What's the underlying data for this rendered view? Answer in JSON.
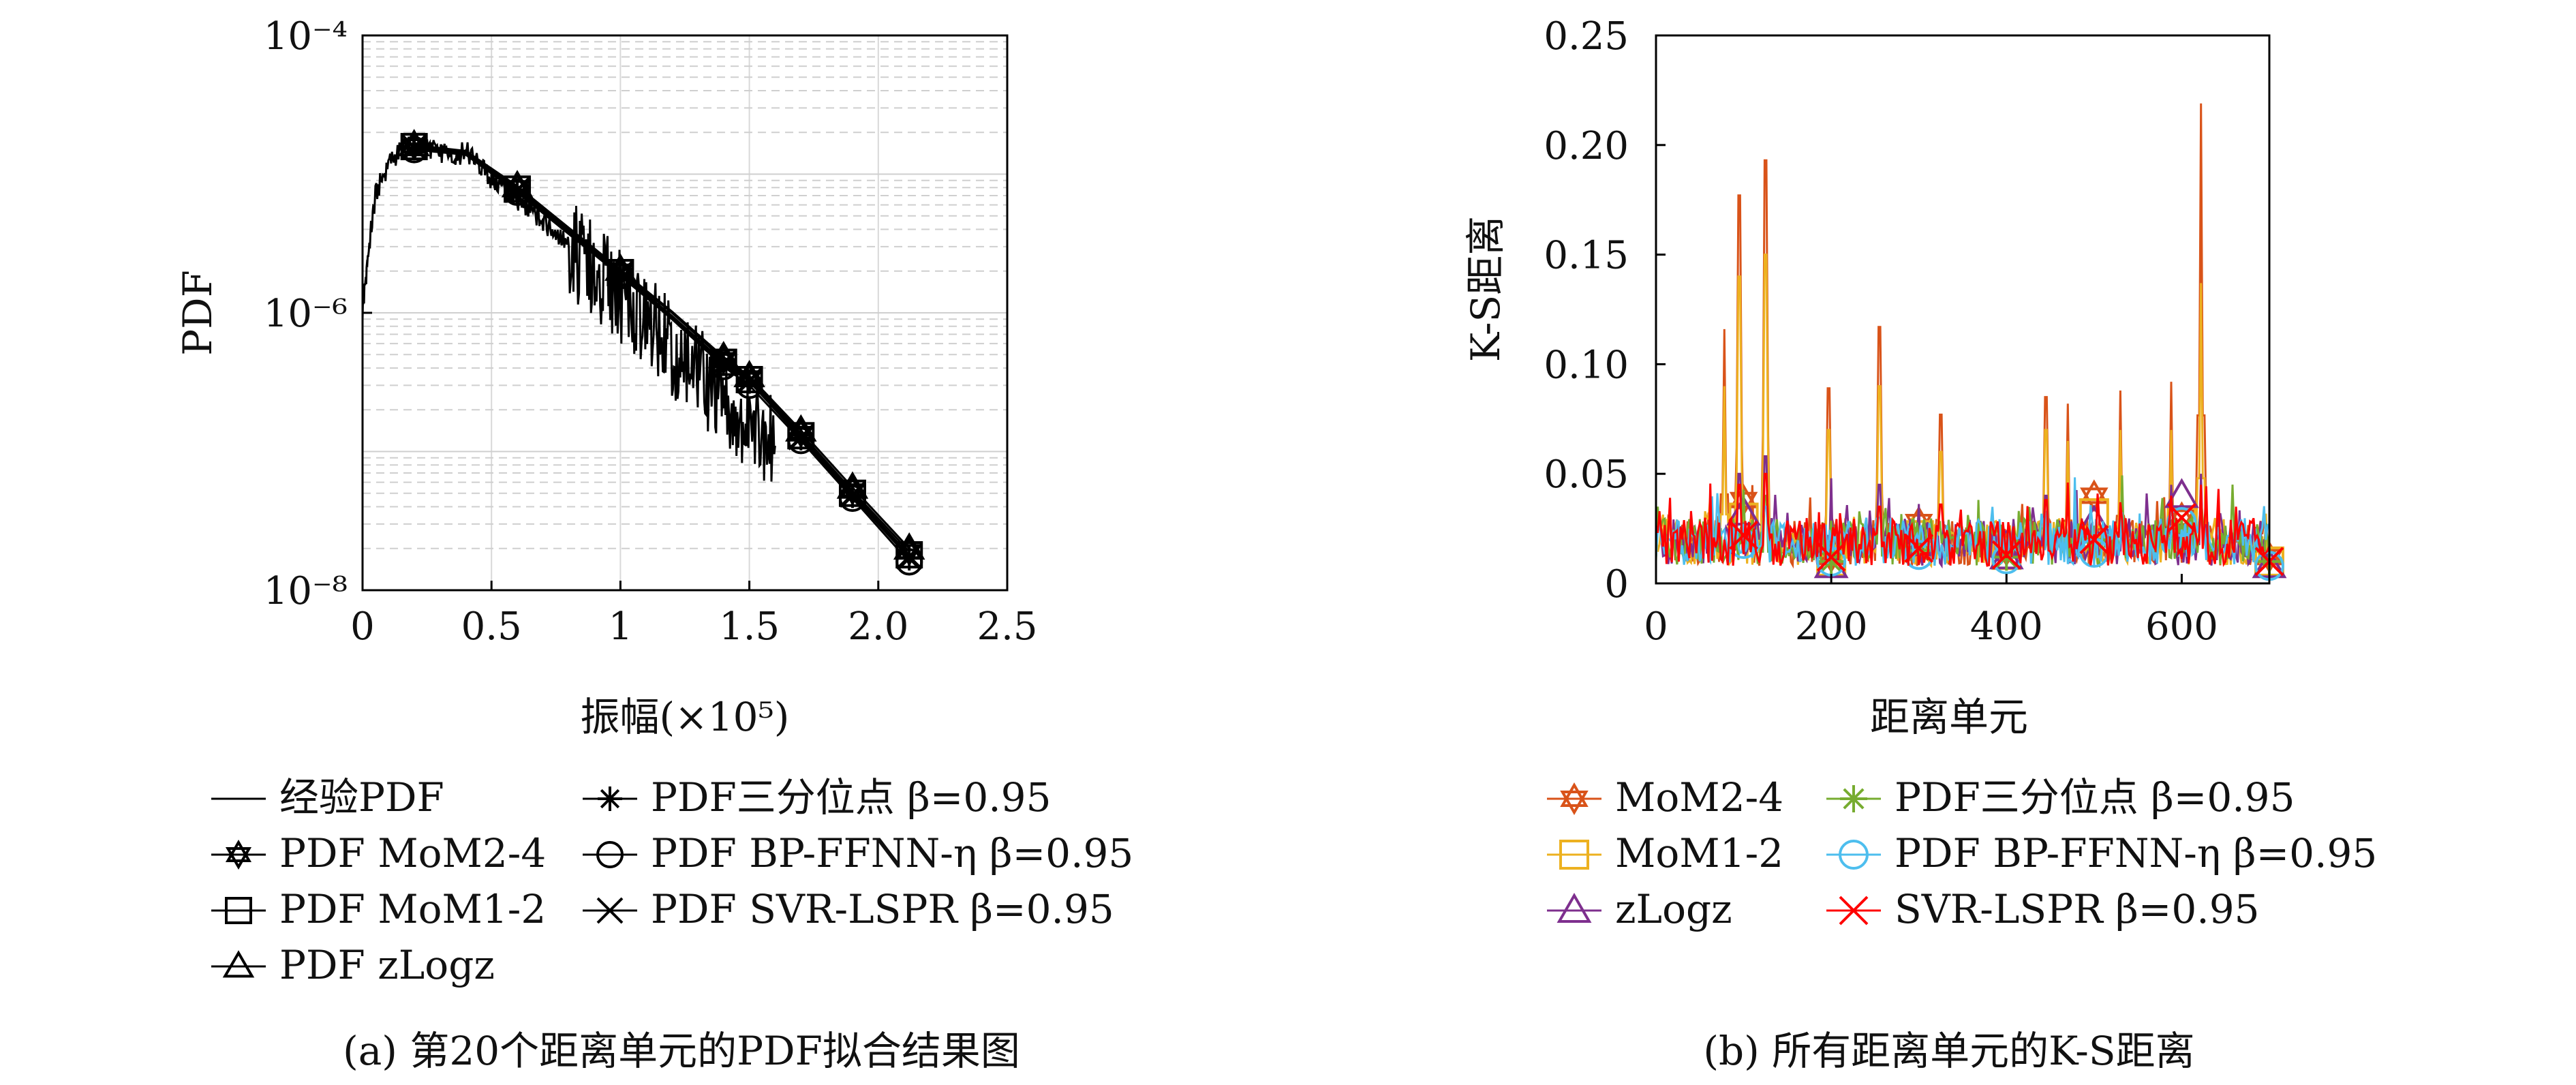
{
  "chart_data": [
    {
      "type": "line",
      "caption": "(a) 第20个距离单元的PDF拟合结果图",
      "xlabel": "振幅(×10⁵)",
      "ylabel": "PDF",
      "x_scale": "linear",
      "y_scale": "log",
      "xlim": [
        0,
        2.5
      ],
      "ylim": [
        1e-08,
        0.0001
      ],
      "xticks": [
        0,
        0.5,
        1,
        1.5,
        2,
        2.5
      ],
      "xtick_labels": [
        "0",
        "0.5",
        "1",
        "1.5",
        "2.0",
        "2.5"
      ],
      "yticks": [
        1e-08,
        1e-06,
        0.0001
      ],
      "ytick_labels": [
        "10⁻⁸",
        "10⁻⁶",
        "10⁻⁴"
      ],
      "grid": true,
      "legend_placement": "below",
      "series": [
        {
          "name": "经验PDF",
          "marker": "none",
          "x": [
            0,
            0.02,
            0.05,
            0.1,
            0.15,
            0.2,
            0.25,
            0.3,
            0.35,
            0.4,
            0.45,
            0.5,
            0.55,
            0.6,
            0.65,
            0.7,
            0.75,
            0.8,
            0.85,
            0.9,
            0.95,
            1.0,
            1.05,
            1.1,
            1.15,
            1.2,
            1.25,
            1.3,
            1.35,
            1.4,
            1.45,
            1.5,
            1.55,
            1.6
          ],
          "y": [
            1e-06,
            2.5e-06,
            7e-06,
            1.2e-05,
            1.5e-05,
            1.7e-05,
            1.6e-05,
            1.4e-05,
            1.35e-05,
            1.45e-05,
            1.2e-05,
            9e-06,
            8e-06,
            6.5e-06,
            5.5e-06,
            4.5e-06,
            3.8e-06,
            3e-06,
            2.4e-06,
            2e-06,
            1.6e-06,
            1.3e-06,
            1.1e-06,
            8.5e-07,
            7e-07,
            5.5e-07,
            4.5e-07,
            3.6e-07,
            3e-07,
            2.4e-07,
            2e-07,
            1.6e-07,
            1.3e-07,
            1.1e-07
          ]
        },
        {
          "name": "PDF MoM2-4",
          "marker": "hexagram",
          "x": [
            0.2,
            0.4,
            0.6,
            0.8,
            1.0,
            1.2,
            1.4,
            1.5,
            1.7,
            1.9,
            2.12
          ],
          "y": [
            1.6e-05,
            1.45e-05,
            8e-06,
            4e-06,
            2e-06,
            1e-06,
            4.6e-07,
            3.4e-07,
            1.35e-07,
            5.2e-08,
            1.9e-08
          ]
        },
        {
          "name": "PDF MoM1-2",
          "marker": "square",
          "x": [
            0.2,
            0.4,
            0.6,
            0.8,
            1.0,
            1.2,
            1.4,
            1.5,
            1.7,
            1.9,
            2.12
          ],
          "y": [
            1.58e-05,
            1.43e-05,
            7.8e-06,
            3.9e-06,
            1.95e-06,
            9.5e-07,
            4.4e-07,
            3.3e-07,
            1.3e-07,
            5e-08,
            1.8e-08
          ]
        },
        {
          "name": "PDF zLogz",
          "marker": "triangle",
          "x": [
            0.2,
            0.4,
            0.6,
            0.8,
            1.0,
            1.2,
            1.4,
            1.5,
            1.7,
            1.9,
            2.12
          ],
          "y": [
            1.62e-05,
            1.47e-05,
            8.2e-06,
            4.1e-06,
            2.05e-06,
            1.02e-06,
            4.8e-07,
            3.5e-07,
            1.42e-07,
            5.5e-08,
            2e-08
          ]
        },
        {
          "name": "PDF三分位点 β=0.95",
          "marker": "asterisk",
          "x": [
            0.2,
            0.4,
            0.6,
            0.8,
            1.0,
            1.2,
            1.4,
            1.5,
            1.7,
            1.9,
            2.12
          ],
          "y": [
            1.55e-05,
            1.4e-05,
            7.6e-06,
            3.8e-06,
            1.9e-06,
            9.2e-07,
            4.3e-07,
            3.2e-07,
            1.25e-07,
            4.8e-08,
            1.7e-08
          ]
        },
        {
          "name": "PDF BP-FFNN-η β=0.95",
          "marker": "circle",
          "x": [
            0.2,
            0.4,
            0.6,
            0.8,
            1.0,
            1.2,
            1.4,
            1.5,
            1.7,
            1.9,
            2.12
          ],
          "y": [
            1.5e-05,
            1.38e-05,
            7.4e-06,
            3.7e-06,
            1.85e-06,
            9e-07,
            4.1e-07,
            3e-07,
            1.2e-07,
            4.6e-08,
            1.6e-08
          ]
        },
        {
          "name": "PDF SVR-LSPR β=0.95",
          "marker": "x",
          "x": [
            0.2,
            0.4,
            0.6,
            0.8,
            1.0,
            1.2,
            1.4,
            1.5,
            1.7,
            1.9,
            2.12
          ],
          "y": [
            1.57e-05,
            1.42e-05,
            7.7e-06,
            3.85e-06,
            1.92e-06,
            9.3e-07,
            4.35e-07,
            3.25e-07,
            1.27e-07,
            4.9e-08,
            1.75e-08
          ]
        }
      ]
    },
    {
      "type": "line",
      "caption": "(b) 所有距离单元的K-S距离",
      "xlabel": "距离单元",
      "ylabel": "K-S距离",
      "xlim": [
        0,
        700
      ],
      "ylim": [
        0,
        0.25
      ],
      "xticks": [
        0,
        200,
        400,
        600
      ],
      "xtick_labels": [
        "0",
        "200",
        "400",
        "600"
      ],
      "yticks": [
        0,
        0.05,
        0.1,
        0.15,
        0.2,
        0.25
      ],
      "ytick_labels": [
        "0",
        "0.05",
        "0.10",
        "0.15",
        "0.20",
        "0.25"
      ],
      "grid": false,
      "legend_placement": "below",
      "series": [
        {
          "name": "MoM2-4",
          "color": "#d95319",
          "marker": "hexagram",
          "peaks": [
            [
              78,
              0.116
            ],
            [
              95,
              0.177
            ],
            [
              125,
              0.193
            ],
            [
              197,
              0.089
            ],
            [
              255,
              0.117
            ],
            [
              325,
              0.077
            ],
            [
              445,
              0.085
            ],
            [
              470,
              0.082
            ],
            [
              530,
              0.088
            ],
            [
              588,
              0.092
            ],
            [
              622,
              0.219
            ]
          ],
          "marker_x": [
            100,
            200,
            300,
            400,
            500,
            600,
            700
          ],
          "marker_y": [
            0.038,
            0.012,
            0.028,
            0.015,
            0.04,
            0.03,
            0.012
          ]
        },
        {
          "name": "MoM1-2",
          "color": "#edb120",
          "marker": "square",
          "peaks": [
            [
              78,
              0.09
            ],
            [
              95,
              0.14
            ],
            [
              125,
              0.15
            ],
            [
              197,
              0.07
            ],
            [
              255,
              0.09
            ],
            [
              325,
              0.06
            ],
            [
              445,
              0.07
            ],
            [
              470,
              0.065
            ],
            [
              530,
              0.07
            ],
            [
              588,
              0.07
            ],
            [
              622,
              0.137
            ]
          ],
          "marker_x": [
            100,
            200,
            300,
            400,
            500,
            600,
            700
          ],
          "marker_y": [
            0.03,
            0.01,
            0.022,
            0.013,
            0.032,
            0.028,
            0.01
          ]
        },
        {
          "name": "zLogz",
          "color": "#7e2f8e",
          "marker": "triangle",
          "peaks": [
            [
              95,
              0.05
            ],
            [
              125,
              0.058
            ],
            [
              255,
              0.045
            ],
            [
              445,
              0.04
            ],
            [
              588,
              0.045
            ],
            [
              622,
              0.05
            ]
          ],
          "marker_x": [
            100,
            200,
            300,
            400,
            500,
            600,
            700
          ],
          "marker_y": [
            0.032,
            0.008,
            0.018,
            0.012,
            0.028,
            0.04,
            0.008
          ]
        },
        {
          "name": "PDF三分位点 β=0.95",
          "color": "#77ac30",
          "marker": "asterisk",
          "peaks": [
            [
              125,
              0.04
            ],
            [
              255,
              0.035
            ],
            [
              622,
              0.04
            ]
          ],
          "marker_x": [
            100,
            200,
            300,
            400,
            500,
            600,
            700
          ],
          "marker_y": [
            0.02,
            0.01,
            0.015,
            0.012,
            0.02,
            0.025,
            0.01
          ]
        },
        {
          "name": "PDF BP-FFNN-η β=0.95",
          "color": "#4dbeee",
          "marker": "circle",
          "peaks": [
            [
              125,
              0.035
            ],
            [
              255,
              0.03
            ],
            [
              622,
              0.035
            ]
          ],
          "marker_x": [
            100,
            200,
            300,
            400,
            500,
            600,
            700
          ],
          "marker_y": [
            0.018,
            0.01,
            0.013,
            0.011,
            0.014,
            0.028,
            0.008
          ]
        },
        {
          "name": "SVR-LSPR β=0.95",
          "color": "#ff0000",
          "marker": "x",
          "peaks": [
            [
              40,
              0.033
            ],
            [
              95,
              0.045
            ],
            [
              125,
              0.05
            ],
            [
              255,
              0.035
            ],
            [
              325,
              0.036
            ],
            [
              445,
              0.038
            ],
            [
              470,
              0.046
            ],
            [
              530,
              0.037
            ],
            [
              588,
              0.04
            ],
            [
              622,
              0.045
            ]
          ],
          "marker_x": [
            100,
            200,
            300,
            400,
            500,
            600,
            700
          ],
          "marker_y": [
            0.022,
            0.012,
            0.016,
            0.013,
            0.02,
            0.03,
            0.01
          ]
        }
      ]
    }
  ]
}
